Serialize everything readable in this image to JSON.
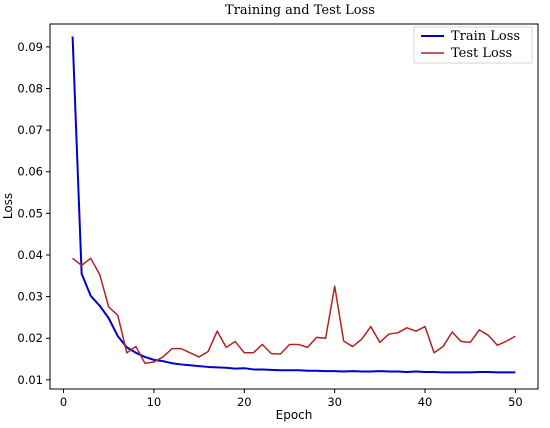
{
  "chart_data": {
    "type": "line",
    "title": "Training and Test Loss",
    "xlabel": "Epoch",
    "ylabel": "Loss",
    "xlim": [
      -1.5,
      52.5
    ],
    "ylim": [
      0.0078,
      0.0955
    ],
    "xticks": [
      0,
      10,
      20,
      30,
      40,
      50
    ],
    "yticks": [
      0.01,
      0.02,
      0.03,
      0.04,
      0.05,
      0.06,
      0.07,
      0.08,
      0.09
    ],
    "legend_position": "top-right",
    "grid": false,
    "x": [
      1,
      2,
      3,
      4,
      5,
      6,
      7,
      8,
      9,
      10,
      11,
      12,
      13,
      14,
      15,
      16,
      17,
      18,
      19,
      20,
      21,
      22,
      23,
      24,
      25,
      26,
      27,
      28,
      29,
      30,
      31,
      32,
      33,
      34,
      35,
      36,
      37,
      38,
      39,
      40,
      41,
      42,
      43,
      44,
      45,
      46,
      47,
      48,
      49,
      50
    ],
    "series": [
      {
        "name": "Train Loss",
        "color": "#0000cc",
        "values": [
          0.0925,
          0.0355,
          0.0302,
          0.0278,
          0.0248,
          0.0205,
          0.0178,
          0.0165,
          0.0155,
          0.0148,
          0.0145,
          0.014,
          0.0137,
          0.0135,
          0.0133,
          0.0131,
          0.013,
          0.0129,
          0.0127,
          0.0128,
          0.0125,
          0.0125,
          0.0124,
          0.0123,
          0.0123,
          0.0123,
          0.0122,
          0.0122,
          0.0121,
          0.0121,
          0.012,
          0.0121,
          0.012,
          0.012,
          0.0121,
          0.012,
          0.012,
          0.0119,
          0.012,
          0.0119,
          0.0119,
          0.0118,
          0.0118,
          0.0118,
          0.0118,
          0.0119,
          0.0119,
          0.0118,
          0.0118,
          0.0118
        ]
      },
      {
        "name": "Test Loss",
        "color": "#b22222",
        "values": [
          0.0392,
          0.0375,
          0.0392,
          0.0353,
          0.0275,
          0.0255,
          0.0165,
          0.018,
          0.014,
          0.0143,
          0.0155,
          0.0175,
          0.0175,
          0.0165,
          0.0155,
          0.0168,
          0.0217,
          0.0178,
          0.0192,
          0.0165,
          0.0165,
          0.0185,
          0.0163,
          0.0162,
          0.0185,
          0.0185,
          0.0178,
          0.0202,
          0.02,
          0.0325,
          0.0193,
          0.018,
          0.0198,
          0.0228,
          0.019,
          0.021,
          0.0213,
          0.0225,
          0.0217,
          0.0228,
          0.0165,
          0.018,
          0.0215,
          0.0192,
          0.019,
          0.022,
          0.0207,
          0.0183,
          0.0193,
          0.0205
        ]
      }
    ]
  }
}
